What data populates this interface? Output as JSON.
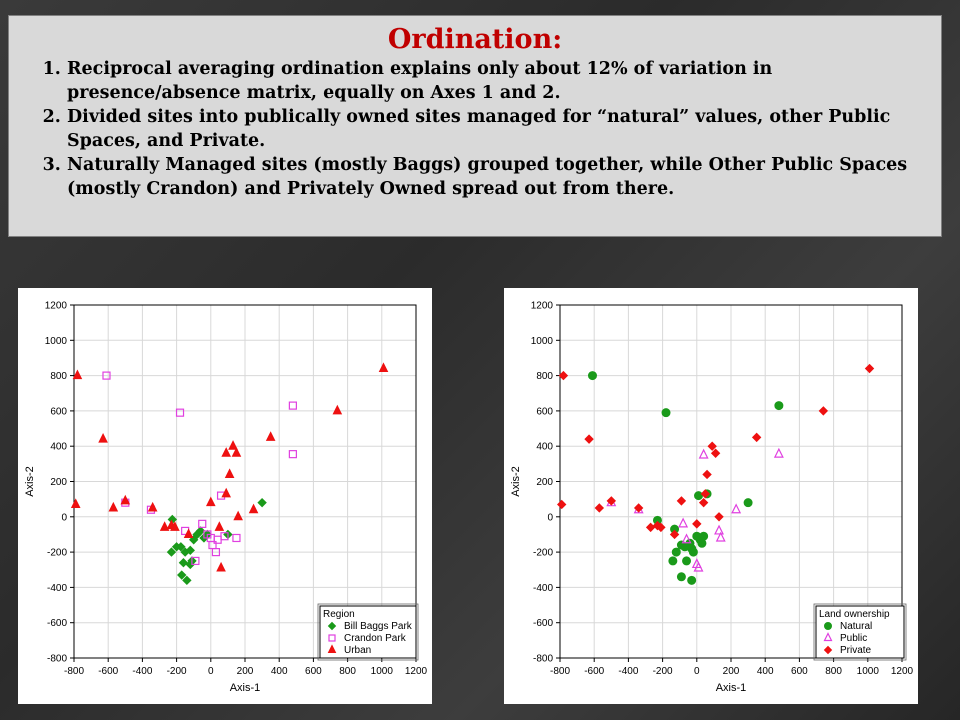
{
  "slide": {
    "title": "Ordination:",
    "items": [
      "Reciprocal averaging ordination explains only about 12% of variation in presence/absence matrix, equally on Axes 1 and 2.",
      "Divided sites into publically owned sites managed for “natural” values, other Public Spaces, and Private.",
      "Naturally Managed sites (mostly Baggs) grouped together, while Other Public Spaces (mostly Crandon) and Privately Owned spread out from there."
    ]
  },
  "chart_data": [
    {
      "type": "scatter",
      "xlabel": "Axis-1",
      "ylabel": "Axis-2",
      "xlim": [
        -800,
        1200
      ],
      "ylim": [
        -800,
        1200
      ],
      "xticks": [
        -800,
        -600,
        -400,
        -200,
        0,
        200,
        400,
        600,
        800,
        1000,
        1200
      ],
      "yticks": [
        -800,
        -600,
        -400,
        -200,
        0,
        200,
        400,
        600,
        800,
        1000,
        1200
      ],
      "grid": true,
      "legend_title": "Region",
      "legend_position": "bottom-right",
      "series": [
        {
          "name": "Bill Baggs Park",
          "marker": "diamond-filled",
          "color": "#1a9a1a",
          "points": [
            [
              -225,
              -15
            ],
            [
              -230,
              -200
            ],
            [
              -200,
              -170
            ],
            [
              -175,
              -170
            ],
            [
              -160,
              -260
            ],
            [
              -150,
              -200
            ],
            [
              -170,
              -330
            ],
            [
              -140,
              -360
            ],
            [
              -120,
              -270
            ],
            [
              -100,
              -130
            ],
            [
              -80,
              -100
            ],
            [
              -60,
              -80
            ],
            [
              -40,
              -120
            ],
            [
              -20,
              -100
            ],
            [
              100,
              -100
            ],
            [
              300,
              80
            ],
            [
              -120,
              -190
            ],
            [
              -110,
              -250
            ]
          ]
        },
        {
          "name": "Crandon Park",
          "marker": "square-open",
          "color": "#e040e0",
          "points": [
            [
              -610,
              800
            ],
            [
              -500,
              80
            ],
            [
              -350,
              40
            ],
            [
              -180,
              590
            ],
            [
              -150,
              -80
            ],
            [
              -90,
              -250
            ],
            [
              -50,
              -40
            ],
            [
              -20,
              -100
            ],
            [
              0,
              -120
            ],
            [
              10,
              -160
            ],
            [
              30,
              -200
            ],
            [
              40,
              -130
            ],
            [
              60,
              120
            ],
            [
              80,
              -110
            ],
            [
              150,
              -120
            ],
            [
              480,
              630
            ],
            [
              480,
              355
            ]
          ]
        },
        {
          "name": "Urban",
          "marker": "triangle-filled",
          "color": "#ee1111",
          "points": [
            [
              -780,
              800
            ],
            [
              -790,
              70
            ],
            [
              -630,
              440
            ],
            [
              -570,
              50
            ],
            [
              -500,
              90
            ],
            [
              -340,
              50
            ],
            [
              -270,
              -60
            ],
            [
              -230,
              -50
            ],
            [
              -210,
              -60
            ],
            [
              -130,
              -100
            ],
            [
              0,
              80
            ],
            [
              50,
              -60
            ],
            [
              60,
              -290
            ],
            [
              90,
              130
            ],
            [
              90,
              360
            ],
            [
              110,
              240
            ],
            [
              130,
              400
            ],
            [
              150,
              360
            ],
            [
              160,
              0
            ],
            [
              250,
              40
            ],
            [
              350,
              450
            ],
            [
              740,
              600
            ],
            [
              1010,
              840
            ]
          ]
        }
      ]
    },
    {
      "type": "scatter",
      "xlabel": "Axis-1",
      "ylabel": "Axis-2",
      "xlim": [
        -800,
        1200
      ],
      "ylim": [
        -800,
        1200
      ],
      "xticks": [
        -800,
        -600,
        -400,
        -200,
        0,
        200,
        400,
        600,
        800,
        1000,
        1200
      ],
      "yticks": [
        -800,
        -600,
        -400,
        -200,
        0,
        200,
        400,
        600,
        800,
        1000,
        1200
      ],
      "grid": true,
      "legend_title": "Land ownership",
      "legend_position": "bottom-right",
      "series": [
        {
          "name": "Natural",
          "marker": "circle-filled",
          "color": "#1a9a1a",
          "points": [
            [
              -610,
              800
            ],
            [
              -180,
              590
            ],
            [
              -230,
              -20
            ],
            [
              -130,
              -70
            ],
            [
              -140,
              -250
            ],
            [
              -120,
              -200
            ],
            [
              -90,
              -160
            ],
            [
              -70,
              -170
            ],
            [
              -40,
              -150
            ],
            [
              -30,
              -180
            ],
            [
              -20,
              -200
            ],
            [
              -60,
              -250
            ],
            [
              -90,
              -340
            ],
            [
              -30,
              -360
            ],
            [
              0,
              -110
            ],
            [
              20,
              -130
            ],
            [
              30,
              -150
            ],
            [
              40,
              -110
            ],
            [
              10,
              120
            ],
            [
              60,
              130
            ],
            [
              300,
              80
            ],
            [
              480,
              630
            ]
          ]
        },
        {
          "name": "Public",
          "marker": "triangle-open",
          "color": "#e040e0",
          "points": [
            [
              -500,
              80
            ],
            [
              -340,
              40
            ],
            [
              -80,
              -40
            ],
            [
              -60,
              -130
            ],
            [
              0,
              -270
            ],
            [
              10,
              -290
            ],
            [
              40,
              350
            ],
            [
              130,
              -80
            ],
            [
              140,
              -120
            ],
            [
              230,
              40
            ],
            [
              480,
              355
            ]
          ]
        },
        {
          "name": "Private",
          "marker": "diamond-filled",
          "color": "#ee1111",
          "points": [
            [
              -780,
              800
            ],
            [
              -790,
              70
            ],
            [
              -630,
              440
            ],
            [
              -570,
              50
            ],
            [
              -500,
              90
            ],
            [
              -340,
              50
            ],
            [
              -270,
              -60
            ],
            [
              -230,
              -50
            ],
            [
              -210,
              -60
            ],
            [
              -130,
              -100
            ],
            [
              -90,
              90
            ],
            [
              0,
              -40
            ],
            [
              40,
              80
            ],
            [
              50,
              130
            ],
            [
              60,
              240
            ],
            [
              90,
              400
            ],
            [
              110,
              360
            ],
            [
              130,
              0
            ],
            [
              350,
              450
            ],
            [
              740,
              600
            ],
            [
              1010,
              840
            ]
          ]
        }
      ]
    }
  ]
}
